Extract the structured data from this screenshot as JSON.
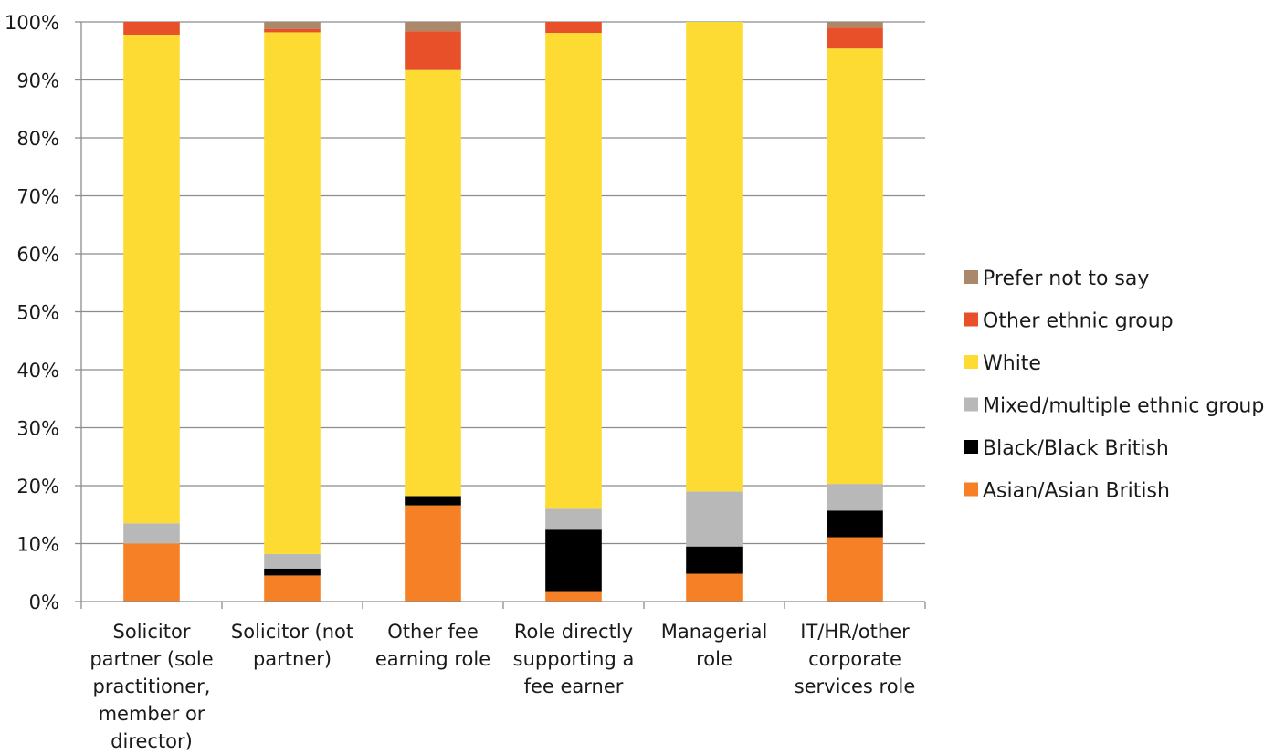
{
  "chart_data": {
    "type": "bar",
    "stacked": true,
    "title": "",
    "xlabel": "",
    "ylabel": "",
    "ylim": [
      0,
      100
    ],
    "y_ticks": [
      "0%",
      "10%",
      "20%",
      "30%",
      "40%",
      "50%",
      "60%",
      "70%",
      "80%",
      "90%",
      "100%"
    ],
    "grid": true,
    "legend_position": "right",
    "categories": [
      [
        "Solicitor",
        "partner (sole",
        "practitioner,",
        "member or",
        "director)"
      ],
      [
        "Solicitor (not",
        "partner)"
      ],
      [
        "Other fee",
        "earning role"
      ],
      [
        "Role directly",
        "supporting a",
        "fee earner"
      ],
      [
        "Managerial",
        "role"
      ],
      [
        "IT/HR/other",
        "corporate",
        "services role"
      ]
    ],
    "series": [
      {
        "name": "Asian/Asian British",
        "color": "#F58025",
        "values": [
          10,
          4.5,
          16.6,
          1.8,
          4.8,
          11.1
        ]
      },
      {
        "name": "Black/Black British",
        "color": "#000000",
        "values": [
          0,
          1.2,
          1.6,
          10.6,
          4.7,
          4.6
        ]
      },
      {
        "name": "Mixed/multiple ethnic groups",
        "color": "#B8B8B8",
        "values": [
          3.5,
          2.5,
          0,
          3.6,
          9.5,
          4.6
        ]
      },
      {
        "name": "White",
        "color": "#FDDB32",
        "values": [
          84.3,
          90,
          73.5,
          82.1,
          81,
          75.1
        ]
      },
      {
        "name": "Other ethnic group",
        "color": "#E8502A",
        "values": [
          2.2,
          0.6,
          6.7,
          1.9,
          0,
          3.6
        ]
      },
      {
        "name": "Prefer not to say",
        "color": "#A9896A",
        "values": [
          0,
          1.2,
          1.6,
          0,
          0,
          1.0
        ]
      }
    ]
  }
}
